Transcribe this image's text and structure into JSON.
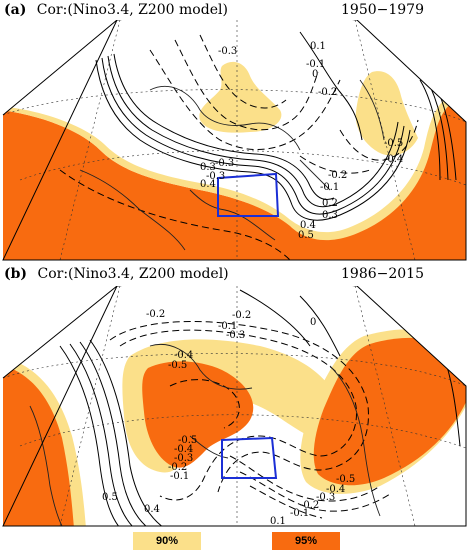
{
  "figure": {
    "panels": [
      {
        "letter": "(a)",
        "label": "Cor:(Nino3.4,  Z200 model)",
        "years": "1950−1979",
        "contour_labels": [
          "-0.3",
          "0.1",
          "-0.2",
          "0",
          "-0.1",
          "-0.3",
          "-0.5",
          "-0.4",
          "-0.3",
          "0.3",
          "0.4",
          "-0.2",
          "-0.1",
          "0.2",
          "0.3",
          "0.4",
          "0.5"
        ]
      },
      {
        "letter": "(b)",
        "label": "Cor:(Nino3.4,  Z200 model)",
        "years": "1986−2015",
        "contour_labels": [
          "-0.2",
          "-0.2",
          "-0.1",
          "-0.3",
          "0",
          "-0.4",
          "-0.5",
          "-0.5",
          "-0.4",
          "-0.3",
          "-0.2",
          "-0.1",
          "-0.5",
          "-0.4",
          "-0.3",
          "-0.2",
          "-0.1",
          "0.1",
          "0.5",
          "0.4"
        ]
      }
    ],
    "legend": [
      {
        "label": "90%",
        "color": "#fbe08a"
      },
      {
        "label": "95%",
        "color": "#f86b10"
      }
    ],
    "colors": {
      "sig90": "#fbe08a",
      "sig95": "#f86b10",
      "box": "#1b2fd6"
    }
  }
}
